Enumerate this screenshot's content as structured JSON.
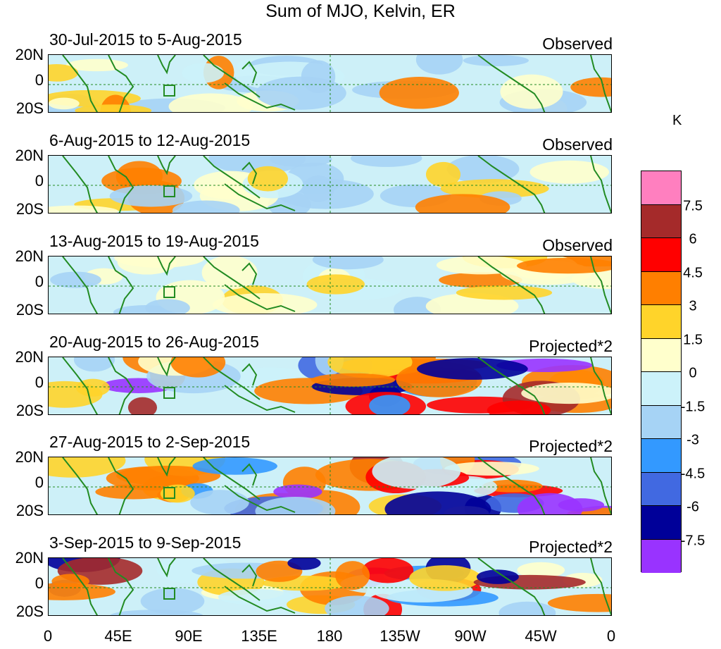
{
  "title": "Sum of MJO, Kelvin, ER",
  "panels": [
    {
      "date": "30-Jul-2015 to 5-Aug-2015",
      "type": "Observed"
    },
    {
      "date": "6-Aug-2015 to 12-Aug-2015",
      "type": "Observed"
    },
    {
      "date": "13-Aug-2015 to 19-Aug-2015",
      "type": "Observed"
    },
    {
      "date": "20-Aug-2015 to 26-Aug-2015",
      "type": "Projected*2"
    },
    {
      "date": "27-Aug-2015 to 2-Sep-2015",
      "type": "Projected*2"
    },
    {
      "date": "3-Sep-2015 to 9-Sep-2015",
      "type": "Projected*2"
    }
  ],
  "lat_labels": [
    "20N",
    "0",
    "20S"
  ],
  "lon_labels": [
    "0",
    "45E",
    "90E",
    "135E",
    "180",
    "135W",
    "90W",
    "45W",
    "0"
  ],
  "colorbar": {
    "units": "K",
    "labels": [
      "7.5",
      "6",
      "4.5",
      "3",
      "1.5",
      "0",
      "-1.5",
      "-3",
      "-4.5",
      "-6",
      "-7.5"
    ],
    "colors": [
      "#ff7fbf",
      "#a52a2a",
      "#ff0000",
      "#ff7f00",
      "#ffd42a",
      "#ffffcc",
      "#ccf2fa",
      "#a6d3f5",
      "#3399ff",
      "#4169e1",
      "#000099",
      "#9933ff"
    ]
  },
  "colors": {
    "coastline": "#228b22",
    "reference_lines": "#228b22"
  }
}
